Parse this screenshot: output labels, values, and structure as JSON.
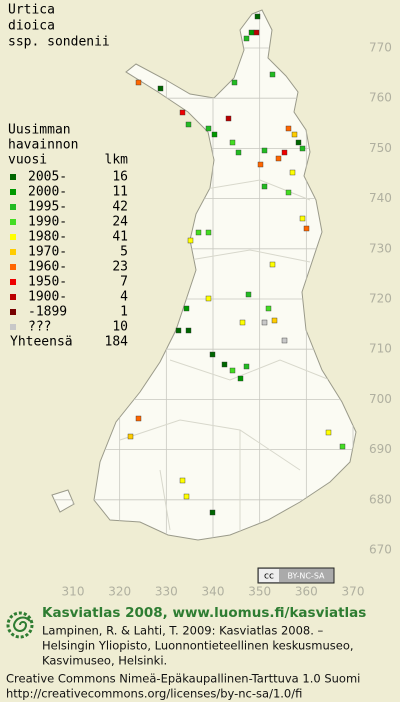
{
  "title": [
    "Urtica",
    "dioica",
    "ssp. sondenii"
  ],
  "legend": {
    "heading": [
      "Uusimman",
      "havainnon"
    ],
    "col_year": "vuosi",
    "col_count": "lkm",
    "rows": [
      {
        "label": "2005-",
        "count": 16,
        "color": "#006600"
      },
      {
        "label": "2000-",
        "count": 11,
        "color": "#009900"
      },
      {
        "label": "1995-",
        "count": 42,
        "color": "#22bb22"
      },
      {
        "label": "1990-",
        "count": 24,
        "color": "#44dd22"
      },
      {
        "label": "1980-",
        "count": 41,
        "color": "#ffff00"
      },
      {
        "label": "1970-",
        "count": 5,
        "color": "#ffcc00"
      },
      {
        "label": "1960-",
        "count": 23,
        "color": "#ff6600"
      },
      {
        "label": "1950-",
        "count": 7,
        "color": "#ee0000"
      },
      {
        "label": "1900-",
        "count": 4,
        "color": "#bb0000"
      },
      {
        "label": "-1899",
        "count": 1,
        "color": "#770000"
      },
      {
        "label": "???",
        "count": 10,
        "color": "#c8c8c8"
      }
    ],
    "total": {
      "label": "Yhteensä",
      "count": 184
    }
  },
  "y_labels": [
    770,
    760,
    750,
    740,
    730,
    720,
    710,
    700,
    690,
    680,
    670
  ],
  "x_labels": [
    310,
    320,
    330,
    340,
    350,
    360,
    370
  ],
  "license_badge": "BY-NC-SA",
  "footer": {
    "title": "Kasviatlas 2008, www.luomus.fi/kasviatlas",
    "citation": [
      "Lampinen, R. & Lahti, T. 2009: Kasviatlas 2008. –",
      "Helsingin Yliopisto, Luonnontieteellinen keskusmuseo,",
      "Kasvimuseo, Helsinki."
    ],
    "license": [
      "Creative Commons Nimeä-Epäkaupallinen-Tarttuva 1.0 Suomi",
      "http://creativecommons.org/licenses/by-nc-sa/1.0/fi"
    ]
  }
}
